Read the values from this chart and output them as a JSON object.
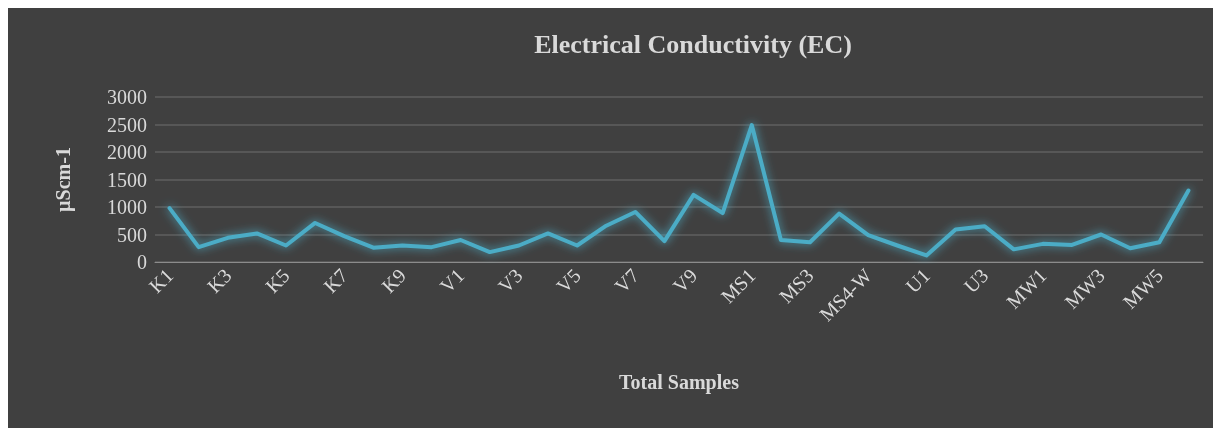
{
  "chart_data": {
    "type": "line",
    "title": "Electrical Conductivity (EC)",
    "xlabel": "Total Samples",
    "ylabel": "µScm-1",
    "categories": [
      "K1",
      null,
      "K3",
      null,
      "K5",
      null,
      "K7",
      null,
      "K9",
      null,
      "V1",
      null,
      "V3",
      null,
      "V5",
      null,
      "V7",
      null,
      "V9",
      null,
      "MS1",
      null,
      "MS3",
      null,
      "MS4-W",
      null,
      "U1",
      null,
      "U3",
      null,
      "MW1",
      null,
      "MW3",
      null,
      "MW5",
      null
    ],
    "series": [
      {
        "color": "#4bacc6",
        "values": [
          980,
          270,
          440,
          520,
          300,
          710,
          470,
          260,
          300,
          270,
          400,
          180,
          300,
          520,
          300,
          660,
          910,
          380,
          1220,
          890,
          2490,
          400,
          360,
          880,
          490,
          300,
          120,
          590,
          650,
          230,
          330,
          310,
          500,
          250,
          360,
          1300
        ]
      }
    ],
    "ylim": [
      0,
      3000
    ],
    "yticks": [
      0,
      500,
      1000,
      1500,
      2000,
      2500,
      3000
    ],
    "grid": "y",
    "marker": "none",
    "line_style": "solid"
  }
}
